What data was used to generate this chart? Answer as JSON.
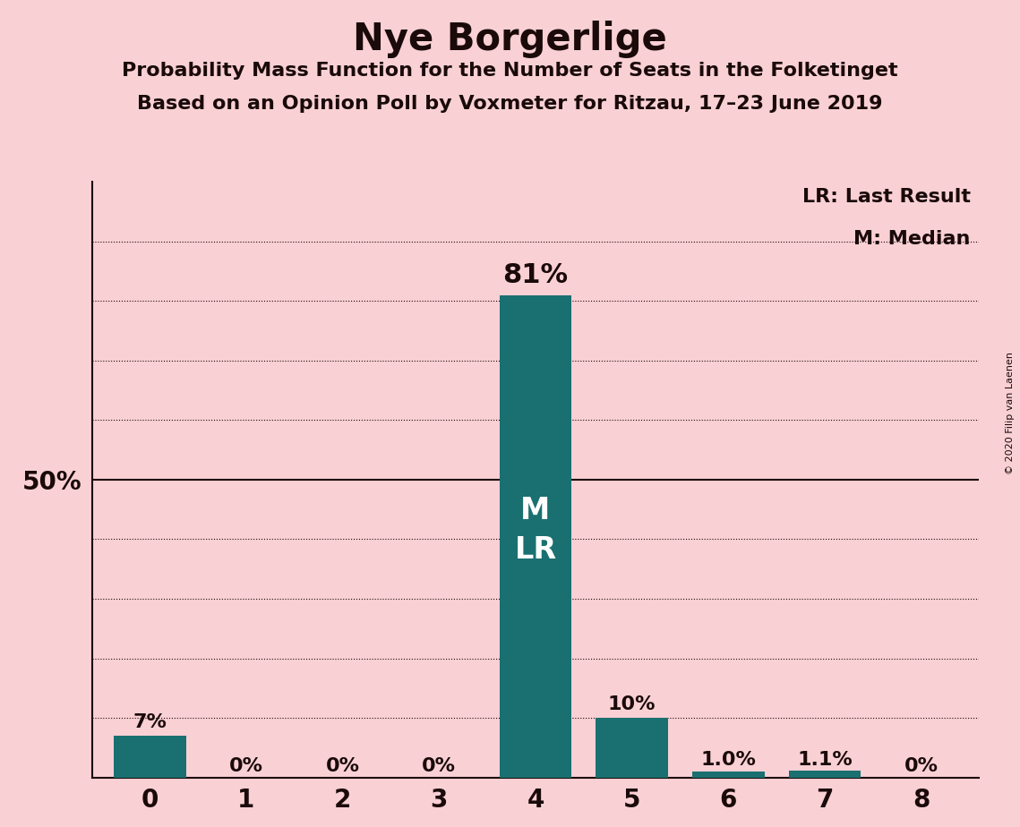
{
  "title": "Nye Borgerlige",
  "subtitle1": "Probability Mass Function for the Number of Seats in the Folketinget",
  "subtitle2": "Based on an Opinion Poll by Voxmeter for Ritzau, 17–23 June 2019",
  "copyright": "© 2020 Filip van Laenen",
  "categories": [
    0,
    1,
    2,
    3,
    4,
    5,
    6,
    7,
    8
  ],
  "values": [
    0.07,
    0.0,
    0.0,
    0.0,
    0.81,
    0.1,
    0.01,
    0.011,
    0.0
  ],
  "bar_labels": [
    "7%",
    "0%",
    "0%",
    "0%",
    "81%",
    "10%",
    "1.0%",
    "1.1%",
    "0%"
  ],
  "bar_color": "#1a7070",
  "background_color": "#f9d0d4",
  "text_color": "#1a0a0a",
  "median_seat": 4,
  "last_result_seat": 4,
  "legend_lr": "LR: Last Result",
  "legend_m": "M: Median",
  "ylabel_50": "50%",
  "title_fontsize": 30,
  "subtitle_fontsize": 16,
  "label_fontsize": 15,
  "bar_label_fontsize_large": 22,
  "bar_label_fontsize_small": 16,
  "ytick_fontsize": 20,
  "xtick_fontsize": 20,
  "mlr_fontsize": 24,
  "copyright_fontsize": 8,
  "legend_fontsize": 16,
  "grid_dotted_positions": [
    0.1,
    0.2,
    0.3,
    0.4,
    0.6,
    0.7,
    0.8,
    0.9
  ],
  "ylim": [
    0,
    1.0
  ],
  "xlim": [
    -0.6,
    8.6
  ],
  "bar_width": 0.75
}
